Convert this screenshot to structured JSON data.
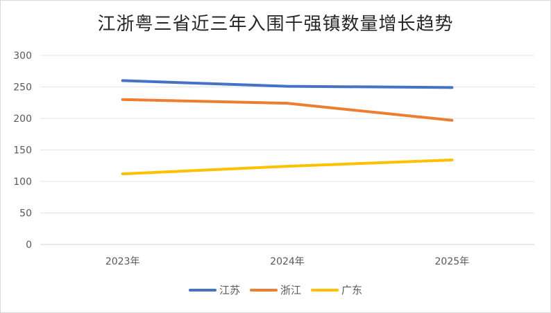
{
  "chart_data": {
    "type": "line",
    "title": "江浙粤三省近三年入围千强镇数量增长趋势",
    "categories": [
      "2023年",
      "2024年",
      "2025年"
    ],
    "series": [
      {
        "name": "江苏",
        "values": [
          260,
          251,
          249
        ],
        "color": "#4472C4"
      },
      {
        "name": "浙江",
        "values": [
          230,
          224,
          197
        ],
        "color": "#ED7D31"
      },
      {
        "name": "广东",
        "values": [
          112,
          124,
          134
        ],
        "color": "#FFC000"
      }
    ],
    "ylim": [
      0,
      300
    ],
    "yticks": [
      0,
      50,
      100,
      150,
      200,
      250,
      300
    ],
    "grid": true,
    "legend": "bottom",
    "xlabel": "",
    "ylabel": ""
  }
}
